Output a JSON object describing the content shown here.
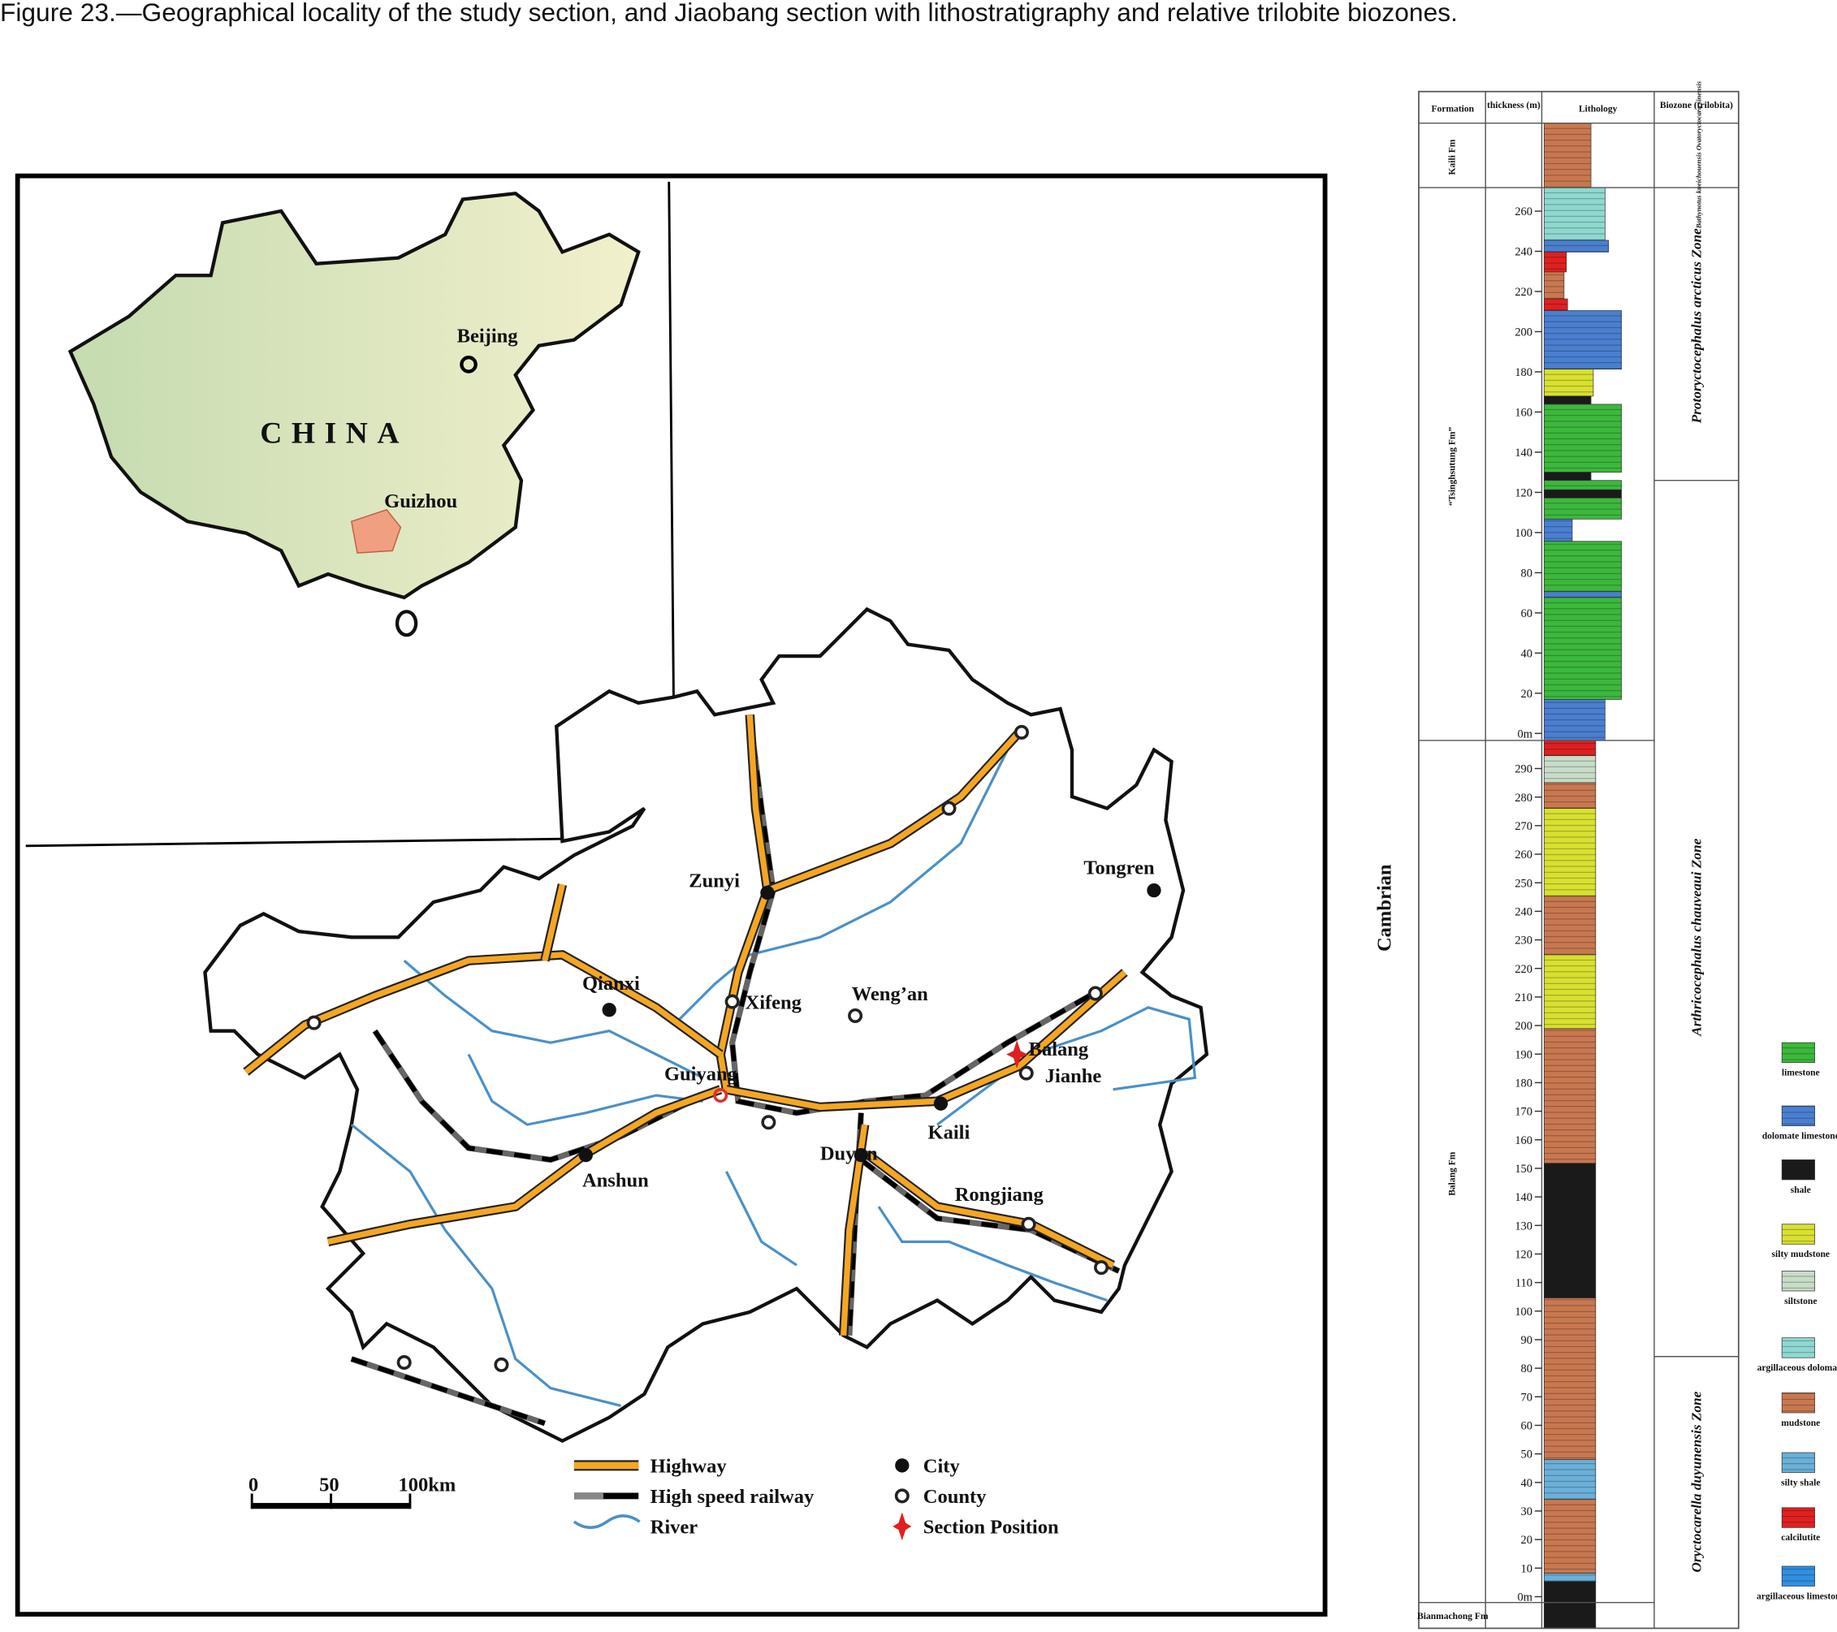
{
  "caption": "Figure 23.—Geographical locality of the study section, and Jiaobang section with lithostratigraphy and relative trilobite biozones.",
  "map": {
    "inset": {
      "country": "CHINA",
      "capital": "Beijing",
      "province": "Guizhou"
    },
    "places": [
      "Tongren",
      "Zunyi",
      "Qianxi",
      "Xifeng",
      "Weng’an",
      "Guiyang",
      "Balang",
      "Jianhe",
      "Kaili",
      "Duyun",
      "Anshun",
      "Rongjiang"
    ],
    "scale_bar": {
      "ticks": [
        0,
        50,
        {
          "value": 100,
          "label": "100km"
        }
      ]
    },
    "legend": [
      "Highway",
      "High speed railway",
      "River",
      "City",
      "County",
      "Section Position"
    ]
  },
  "column": {
    "headers": [
      "Formation",
      "thickness (m)",
      "Lithology",
      "Biozone (trilobita)"
    ],
    "period": "Cambrian",
    "formations": [
      "Kaili Fm",
      "“Tsinghsutung Fm”",
      "Balang Fm",
      "Bianmachong Fm"
    ],
    "tsinghsutung_ticks": [
      {
        "value": 0,
        "label": "0m"
      },
      20,
      40,
      60,
      80,
      100,
      120,
      140,
      160,
      180,
      200,
      220,
      240,
      260
    ],
    "balang_ticks": [
      {
        "value": 0,
        "label": "0m"
      },
      10,
      20,
      30,
      40,
      50,
      60,
      70,
      80,
      90,
      100,
      110,
      120,
      130,
      140,
      150,
      160,
      170,
      180,
      190,
      200,
      210,
      220,
      230,
      240,
      250,
      260,
      270,
      280,
      290
    ],
    "biozones": [
      "Bathynotus kueichouensis Ovatoryctocara sinensis",
      "Protoryctocephalus arcticus Zone",
      "Arthricocephalus chauveaui Zone",
      "Oryctocarella duyunensis Zone"
    ],
    "legend": [
      "limestone",
      "dolomate limestone",
      "shale",
      "silty mudstone",
      "siltstone",
      "argillaceous dolomate",
      "mudstone",
      "silty shale",
      "calcilutite",
      "argillaceous limestone"
    ]
  }
}
